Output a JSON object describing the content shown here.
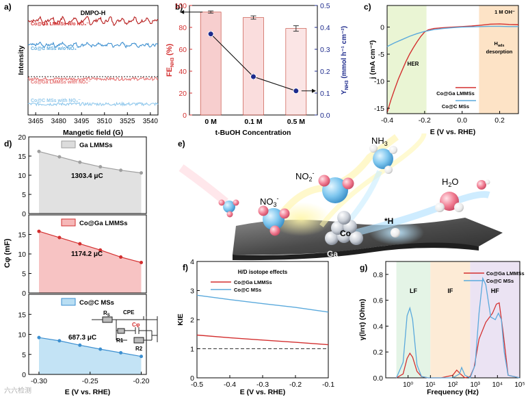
{
  "colors": {
    "red": "#d32f2f",
    "blue": "#5aa9dc",
    "navy": "#1d2a8c",
    "bar_red": "#f6c6c6",
    "green_zone": "#eaf5d4",
    "orange_zone": "#fde3c6",
    "lf_zone": "#e4f4e6",
    "if_zone": "#fdebd6",
    "hf_zone": "#ebe3f3",
    "grey_fill": "#dcdcdc",
    "red_fill": "#f6b8b8",
    "blue_fill": "#b9def3"
  },
  "watermark": "六六检测",
  "chart_data": [
    {
      "id": "a",
      "panel": "a)",
      "type": "line",
      "title": "DMPO-H",
      "xlabel": "Mangetic field (G)",
      "ylabel": "Intensity",
      "xticks": [
        3465,
        3480,
        3495,
        3510,
        3525,
        3540
      ],
      "xlim": [
        3460,
        3545
      ],
      "series": [
        {
          "name": "Co@Ga LMMSs w/o NO₃⁻",
          "color": "#b71c1c",
          "text_color": "#d32f2f",
          "offset": 0.86,
          "amp": 0.055,
          "noise": 0.012,
          "peaks": true
        },
        {
          "name": "Co@C MSs w/o NO₃⁻",
          "color": "#3c8fd0",
          "text_color": "#5aa9dc",
          "offset": 0.64,
          "amp": 0.03,
          "noise": 0.012,
          "peaks": true
        },
        {
          "name": "Co@Ga LMMSs with NO₃⁻",
          "color": "#e57373",
          "text_color": "#e57373",
          "offset": 0.33,
          "amp": 0.0,
          "noise": 0.014,
          "peaks": false
        },
        {
          "name": "Co@C MSs with NO₃⁻",
          "color": "#90c8ec",
          "text_color": "#8ec6ea",
          "offset": 0.1,
          "amp": 0.0,
          "noise": 0.014,
          "peaks": false
        }
      ],
      "peak_positions": [
        3469,
        3477,
        3484,
        3492,
        3500,
        3508,
        3515,
        3523,
        3531,
        3539
      ]
    },
    {
      "id": "b",
      "panel": "b)",
      "type": "bar",
      "categories": [
        "0 M",
        "0.1 M",
        "0.5 M"
      ],
      "xlabel": "t-BuOH Concentration",
      "ylabel_left": "FE",
      "ylabel_left_sub": "NH3",
      "ylabel_left_unit": " (%)",
      "ylabel_right": "Y",
      "ylabel_right_sub": "NH3",
      "ylabel_right_unit": " (mmol h⁻¹ cm⁻²)",
      "ylim_left": [
        0,
        100
      ],
      "yticks_left": [
        0,
        20,
        40,
        60,
        80,
        100
      ],
      "ylim_right": [
        0,
        0.5
      ],
      "yticks_right": [
        0.0,
        0.1,
        0.2,
        0.3,
        0.4,
        0.5
      ],
      "fe_values": [
        94,
        89,
        79
      ],
      "fe_err": [
        1.0,
        1.5,
        2.5
      ],
      "yield_values": [
        0.37,
        0.175,
        0.11
      ],
      "yield_err": [
        0.015,
        0.015,
        0.012
      ]
    },
    {
      "id": "c",
      "panel": "c)",
      "type": "line",
      "xlabel": "E (V vs. RHE)",
      "ylabel": "j (mA cm⁻²)",
      "xlim": [
        -0.4,
        0.3
      ],
      "xticks": [
        -0.4,
        -0.2,
        0.0,
        0.2
      ],
      "ylim": [
        -16,
        4
      ],
      "yticks": [
        -15,
        -10,
        -5,
        0
      ],
      "zone_her": [
        -0.4,
        -0.19
      ],
      "zone_hads": [
        0.09,
        0.3
      ],
      "labels": {
        "her": "HER",
        "hads": "Hads",
        "hads_sub": "ads",
        "desorption": "desorption",
        "electrolyte": "1 M OH⁻"
      },
      "series": [
        {
          "name": "Co@Ga LMMSs",
          "color": "#d32f2f",
          "x": [
            -0.4,
            -0.38,
            -0.36,
            -0.34,
            -0.32,
            -0.3,
            -0.28,
            -0.26,
            -0.24,
            -0.22,
            -0.2,
            -0.18,
            -0.15,
            -0.1,
            -0.05,
            0.0,
            0.05,
            0.1,
            0.15,
            0.2,
            0.25,
            0.3
          ],
          "y": [
            -15.8,
            -13.5,
            -11.5,
            -9.6,
            -8.0,
            -6.4,
            -5.0,
            -3.8,
            -2.7,
            -1.7,
            -0.9,
            -0.5,
            -0.25,
            -0.1,
            0.0,
            0.1,
            0.2,
            0.35,
            0.55,
            0.6,
            0.5,
            0.45
          ]
        },
        {
          "name": "Co@C MSs",
          "color": "#5aa9dc",
          "x": [
            -0.4,
            -0.36,
            -0.32,
            -0.28,
            -0.24,
            -0.2,
            -0.15,
            -0.1,
            -0.05,
            0.0,
            0.05,
            0.1,
            0.15,
            0.2,
            0.25,
            0.3
          ],
          "y": [
            -3.6,
            -2.9,
            -2.3,
            -1.7,
            -1.2,
            -0.8,
            -0.45,
            -0.25,
            -0.1,
            0.0,
            0.05,
            0.1,
            0.15,
            0.15,
            0.1,
            0.1
          ]
        }
      ]
    },
    {
      "id": "d",
      "panel": "d)",
      "type": "area",
      "xlabel": "E (V vs. RHE)",
      "ylabel": "Cφ (mF)",
      "xlim": [
        -0.31,
        -0.195
      ],
      "xticks": [
        -0.3,
        -0.25,
        -0.2
      ],
      "ylim": [
        0,
        20
      ],
      "yticks": [
        0,
        5,
        10,
        15,
        20
      ],
      "panels": [
        {
          "name": "Ga LMMSs",
          "value_label": "1303.4 μC",
          "x": [
            -0.3,
            -0.28,
            -0.26,
            -0.24,
            -0.22,
            -0.2
          ],
          "y": [
            16.2,
            14.8,
            13.4,
            12.2,
            11.3,
            10.6
          ],
          "color": "#9e9e9e",
          "fill": "#dcdcdc"
        },
        {
          "name": "Co@Ga LMMSs",
          "value_label": "1174.2 μC",
          "x": [
            -0.3,
            -0.28,
            -0.26,
            -0.24,
            -0.22,
            -0.2
          ],
          "y": [
            15.8,
            14.2,
            12.6,
            11.0,
            9.2,
            7.8
          ],
          "color": "#d32f2f",
          "fill": "#f6b8b8"
        },
        {
          "name": "Co@C MSs",
          "value_label": "687.3 μC",
          "x": [
            -0.3,
            -0.28,
            -0.26,
            -0.24,
            -0.22,
            -0.2
          ],
          "y": [
            9.2,
            8.4,
            7.3,
            6.3,
            5.4,
            4.5
          ],
          "color": "#3c8fd0",
          "fill": "#b9def3"
        }
      ],
      "circuit": {
        "rs": "Rs",
        "rs_sub": "S",
        "cpe": "CPE",
        "cphi": "Cφ",
        "r1": "R1",
        "r2": "R2"
      }
    },
    {
      "id": "f",
      "panel": "f)",
      "type": "line",
      "title": "H/D isotope effects",
      "xlabel": "E (V vs. RHE)",
      "ylabel": "KIE",
      "xlim": [
        -0.5,
        -0.1
      ],
      "xticks": [
        -0.5,
        -0.4,
        -0.3,
        -0.2,
        -0.1
      ],
      "ylim": [
        0,
        4
      ],
      "yticks": [
        0,
        1,
        2,
        3,
        4
      ],
      "reference_line": 1.0,
      "series": [
        {
          "name": "Co@Ga LMMSs",
          "color": "#d32f2f",
          "x": [
            -0.5,
            -0.4,
            -0.3,
            -0.2,
            -0.1
          ],
          "y": [
            1.47,
            1.38,
            1.3,
            1.22,
            1.14
          ]
        },
        {
          "name": "Co@C MSs",
          "color": "#5aa9dc",
          "x": [
            -0.5,
            -0.4,
            -0.3,
            -0.2,
            -0.1
          ],
          "y": [
            2.84,
            2.69,
            2.55,
            2.42,
            2.26
          ]
        }
      ]
    },
    {
      "id": "g",
      "panel": "g)",
      "type": "line",
      "xlabel": "Frequency (Hz)",
      "ylabel": "γ(lnτ) (Ohm)",
      "xscale": "log",
      "xlim": [
        0.1,
        100000
      ],
      "xticks": [
        "10⁰",
        "10¹",
        "10²",
        "10³",
        "10⁴",
        "10⁵"
      ],
      "xtick_values": [
        1,
        10,
        100,
        1000,
        10000,
        100000
      ],
      "ylim": [
        0,
        0.9
      ],
      "yticks": [
        0.0,
        0.2,
        0.4,
        0.6,
        0.8
      ],
      "zones": [
        {
          "label": "LF",
          "from": 0.3,
          "to": 10
        },
        {
          "label": "IF",
          "from": 10,
          "to": 600
        },
        {
          "label": "HF",
          "from": 600,
          "to": 100000
        }
      ],
      "series": [
        {
          "name": "Co@Ga LMMSs",
          "color": "#d32f2f",
          "x": [
            0.3,
            0.6,
            0.9,
            1.2,
            1.6,
            2.5,
            4,
            8,
            30,
            100,
            150,
            220,
            350,
            600,
            900,
            1500,
            3000,
            6000,
            9000,
            12000,
            18000,
            30000,
            100000
          ],
          "y": [
            0.0,
            0.03,
            0.15,
            0.19,
            0.16,
            0.05,
            0.01,
            0.0,
            0.0,
            0.02,
            0.06,
            0.03,
            0.0,
            0.01,
            0.08,
            0.3,
            0.43,
            0.5,
            0.57,
            0.58,
            0.35,
            0.02,
            0.0
          ]
        },
        {
          "name": "Co@C MSs",
          "color": "#5aa9dc",
          "x": [
            0.3,
            0.6,
            0.9,
            1.2,
            1.6,
            2.5,
            4,
            8,
            30,
            100,
            200,
            250,
            350,
            600,
            1000,
            1500,
            2200,
            3000,
            5000,
            8000,
            11000,
            15000,
            20000,
            30000,
            100000
          ],
          "y": [
            0.0,
            0.12,
            0.48,
            0.54,
            0.45,
            0.1,
            0.01,
            0.0,
            0.0,
            0.0,
            0.03,
            0.08,
            0.02,
            0.0,
            0.1,
            0.5,
            0.77,
            0.72,
            0.47,
            0.45,
            0.5,
            0.45,
            0.2,
            0.02,
            0.0
          ]
        }
      ]
    }
  ],
  "illustration": {
    "panel": "e)",
    "labels": {
      "nh3": "NH3",
      "nh3_sub": "3",
      "no2": "NO2⁻",
      "no2_sub": "2",
      "no2_sup": "-",
      "no3": "NO3⁻",
      "no3_sub": "3",
      "no3_sup": "-",
      "h2o": "H2O",
      "h2o_sub": "2",
      "h_ads": "*H",
      "co": "Co",
      "ga": "Ga"
    }
  }
}
